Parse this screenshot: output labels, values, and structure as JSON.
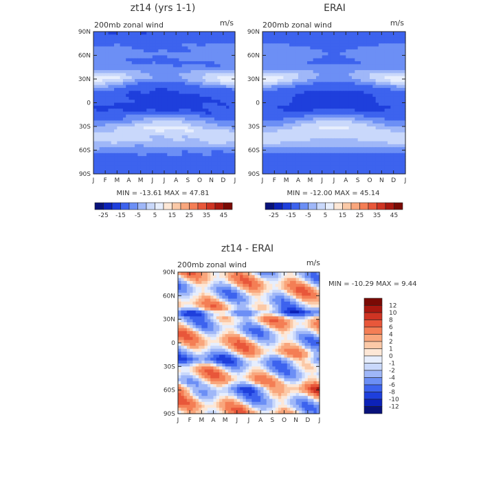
{
  "colors": {
    "blues": [
      "#08127a",
      "#0c22b8",
      "#1e3fdc",
      "#3d63ee",
      "#6c8ff5",
      "#9fb7f8",
      "#c9d8fb",
      "#e7eefd"
    ],
    "reds": [
      "#fde7d6",
      "#fbc9a7",
      "#f9a67c",
      "#f47e55",
      "#e8573a",
      "#cf3423",
      "#a91810",
      "#7a0a05"
    ]
  },
  "chart_data": [
    {
      "type": "heatmap",
      "title": "zt14  (yrs 1-1)",
      "subtitle": "200mb zonal wind",
      "units": "m/s",
      "x_ticks": [
        "J",
        "F",
        "M",
        "A",
        "M",
        "J",
        "J",
        "A",
        "S",
        "O",
        "N",
        "D",
        "J"
      ],
      "y_ticks": [
        "90N",
        "60N",
        "30N",
        "0",
        "30S",
        "60S",
        "90S"
      ],
      "stats": "MIN = -13.61  MAX =   47.81",
      "levels": [
        -25,
        -15,
        -5,
        5,
        15,
        25,
        35,
        45
      ],
      "colorbar_labels": [
        "-25",
        "-15",
        "-5",
        "5",
        "15",
        "25",
        "35",
        "45"
      ]
    },
    {
      "type": "heatmap",
      "title": "ERAI",
      "subtitle": "200mb zonal wind",
      "units": "m/s",
      "x_ticks": [
        "J",
        "F",
        "M",
        "A",
        "M",
        "J",
        "J",
        "A",
        "S",
        "O",
        "N",
        "D",
        "J"
      ],
      "y_ticks": [
        "90N",
        "60N",
        "30N",
        "0",
        "30S",
        "60S",
        "90S"
      ],
      "stats": "MIN = -12.00  MAX =   45.14",
      "levels": [
        -25,
        -15,
        -5,
        5,
        15,
        25,
        35,
        45
      ],
      "colorbar_labels": [
        "-25",
        "-15",
        "-5",
        "5",
        "15",
        "25",
        "35",
        "45"
      ]
    },
    {
      "type": "heatmap",
      "title": "zt14 - ERAI",
      "subtitle": "200mb zonal wind",
      "units": "m/s",
      "x_ticks": [
        "J",
        "F",
        "M",
        "A",
        "M",
        "J",
        "J",
        "A",
        "S",
        "O",
        "N",
        "D",
        "J"
      ],
      "y_ticks": [
        "90N",
        "60N",
        "30N",
        "0",
        "30S",
        "60S",
        "90S"
      ],
      "stats": "MIN = -10.29  MAX =    9.44",
      "levels": [
        -12,
        -10,
        -8,
        -6,
        -4,
        -2,
        -1,
        0,
        1,
        2,
        4,
        6,
        8,
        10,
        12
      ],
      "colorbar_labels": [
        "12",
        "10",
        "8",
        "6",
        "4",
        "2",
        "1",
        "0",
        "-1",
        "-2",
        "-4",
        "-6",
        "-8",
        "-10",
        "-12"
      ]
    }
  ]
}
